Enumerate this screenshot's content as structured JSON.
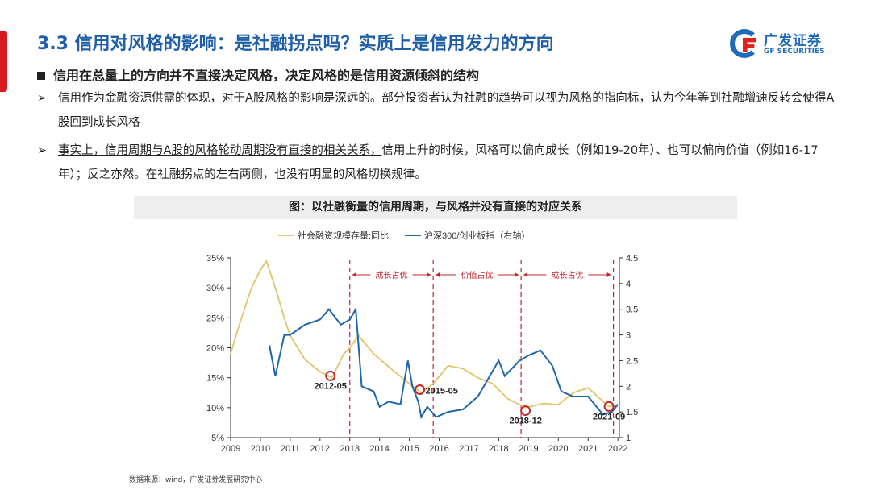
{
  "header": {
    "title": "3.3 信用对风格的影响：是社融拐点吗？实质上是信用发力的方向",
    "logo_cn": "广发证券",
    "logo_en": "GF SECURITIES"
  },
  "subtitle": "信用在总量上的方向并不直接决定风格，决定风格的是信用资源倾斜的结构",
  "bullets": [
    {
      "text": "信用作为金融资源供需的体现，对于A股风格的影响是深远的。部分投资者认为社融的趋势可以视为风格的指向标，认为今年等到社融增速反转会使得A股回到成长风格"
    },
    {
      "underlined": "事实上，信用周期与A股的风格轮动周期没有直接的相关关系，",
      "text": "信用上升的时候，风格可以偏向成长（例如19-20年）、也可以偏向价值（例如16-17年）；反之亦然。在社融拐点的左右两侧，也没有明显的风格切换规律。"
    }
  ],
  "figure_caption": "图：以社融衡量的信用周期，与风格并没有直接的对应关系",
  "source": "数据来源：wind，广发证券发展研究中心",
  "chart_data": {
    "type": "line",
    "title": "图：以社融衡量的信用周期，与风格并没有直接的对应关系",
    "legend": [
      "社会融资规模存量:同比",
      "沪深300/创业板指（右轴）"
    ],
    "legend_placement": "top",
    "colors": {
      "credit": "#e2c46a",
      "ratio": "#1f67a8",
      "annotation": "#c0282d"
    },
    "x_ticks": [
      "2009",
      "2010",
      "2011",
      "2012",
      "2013",
      "2014",
      "2015",
      "2016",
      "2017",
      "2018",
      "2019",
      "2020",
      "2021",
      "2022"
    ],
    "xlim": [
      2009,
      2022.1
    ],
    "y_left": {
      "ticks": [
        "5%",
        "10%",
        "15%",
        "20%",
        "25%",
        "30%",
        "35%"
      ],
      "range": [
        5,
        35
      ]
    },
    "y_right": {
      "ticks": [
        "1",
        "1.5",
        "2",
        "2.5",
        "3",
        "3.5",
        "4",
        "4.5"
      ],
      "range": [
        1,
        4.5
      ]
    },
    "series": [
      {
        "name": "社会融资规模存量:同比",
        "axis": "left",
        "x": [
          2009,
          2009.3,
          2009.7,
          2010.0,
          2010.2,
          2010.5,
          2010.8,
          2011.0,
          2011.5,
          2012.0,
          2012.4,
          2012.8,
          2013.0,
          2013.3,
          2013.8,
          2014.5,
          2015.0,
          2015.4,
          2015.8,
          2016.3,
          2016.8,
          2017.3,
          2017.8,
          2018.3,
          2018.9,
          2019.5,
          2020.0,
          2020.5,
          2021.0,
          2021.4,
          2021.7,
          2022.0
        ],
        "y": [
          19,
          24,
          30,
          33,
          34.5,
          30,
          25,
          22,
          18,
          16,
          15,
          19,
          20,
          22,
          19,
          16,
          14,
          12.5,
          14,
          17,
          16.5,
          15,
          14,
          11.5,
          10,
          10.7,
          10.5,
          12.5,
          13.3,
          11.5,
          10.2,
          10.3
        ]
      },
      {
        "name": "沪深300/创业板指（右轴）",
        "axis": "right",
        "x": [
          2010.3,
          2010.5,
          2010.8,
          2011.0,
          2011.5,
          2012.0,
          2012.3,
          2012.7,
          2013.0,
          2013.2,
          2013.4,
          2013.8,
          2014.0,
          2014.3,
          2014.7,
          2014.95,
          2015.1,
          2015.3,
          2015.4,
          2015.6,
          2015.9,
          2016.3,
          2016.8,
          2017.3,
          2017.6,
          2018.0,
          2018.2,
          2018.7,
          2019.0,
          2019.4,
          2019.8,
          2020.1,
          2020.5,
          2021.0,
          2021.5,
          2021.8,
          2022.0
        ],
        "y": [
          2.8,
          2.2,
          3.0,
          3.0,
          3.2,
          3.3,
          3.5,
          3.2,
          3.3,
          3.5,
          2.0,
          1.9,
          1.6,
          1.7,
          1.65,
          2.5,
          2.0,
          1.7,
          1.4,
          1.6,
          1.4,
          1.5,
          1.55,
          1.8,
          2.1,
          2.5,
          2.2,
          2.5,
          2.6,
          2.7,
          2.4,
          1.9,
          1.8,
          1.8,
          1.45,
          1.5,
          1.65
        ]
      }
    ],
    "regime_lines": [
      2013.0,
      2015.8,
      2018.75,
      2021.85
    ],
    "regimes": [
      {
        "label": "成长占优",
        "from": 2013.0,
        "to": 2015.8
      },
      {
        "label": "价值占优",
        "from": 2015.8,
        "to": 2018.75
      },
      {
        "label": "成长占优",
        "from": 2018.75,
        "to": 2021.85
      }
    ],
    "annotations": [
      {
        "label": "2012-05",
        "x": 2012.35,
        "y": 15.3
      },
      {
        "label": "2015-05",
        "x": 2015.35,
        "y": 13
      },
      {
        "label": "2018-12",
        "x": 2018.9,
        "y": 9.5
      },
      {
        "label": "2021-09",
        "x": 2021.7,
        "y": 10.2
      }
    ]
  }
}
